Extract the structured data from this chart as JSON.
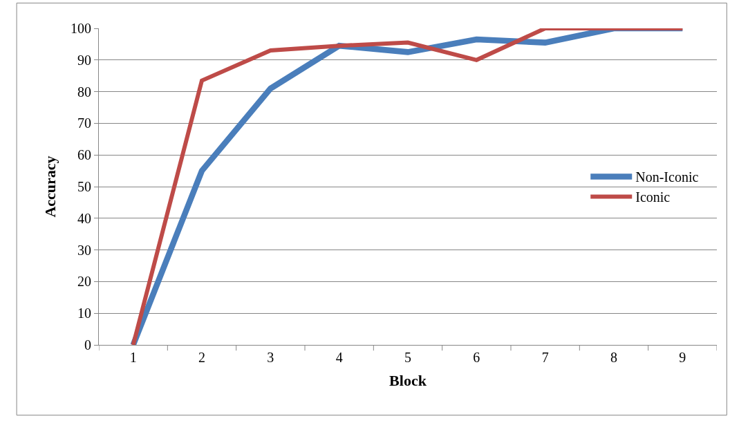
{
  "chart_data": {
    "type": "line",
    "xlabel": "Block",
    "ylabel": "Accuracy",
    "categories": [
      "1",
      "2",
      "3",
      "4",
      "5",
      "6",
      "7",
      "8",
      "9"
    ],
    "series": [
      {
        "name": "Non-Iconic",
        "color": "#4a7ebb",
        "values": [
          0,
          55,
          81,
          94.5,
          92.5,
          96.5,
          95.5,
          100,
          100
        ]
      },
      {
        "name": "Iconic",
        "color": "#be4b48",
        "values": [
          0,
          83.5,
          93,
          94.5,
          95.5,
          90,
          100,
          100,
          100
        ]
      }
    ],
    "ylim": [
      0,
      100
    ],
    "yticks": [
      0,
      10,
      20,
      30,
      40,
      50,
      60,
      70,
      80,
      90,
      100
    ],
    "grid": "y",
    "legend": "right",
    "marker": "none",
    "line_style": "solid"
  }
}
